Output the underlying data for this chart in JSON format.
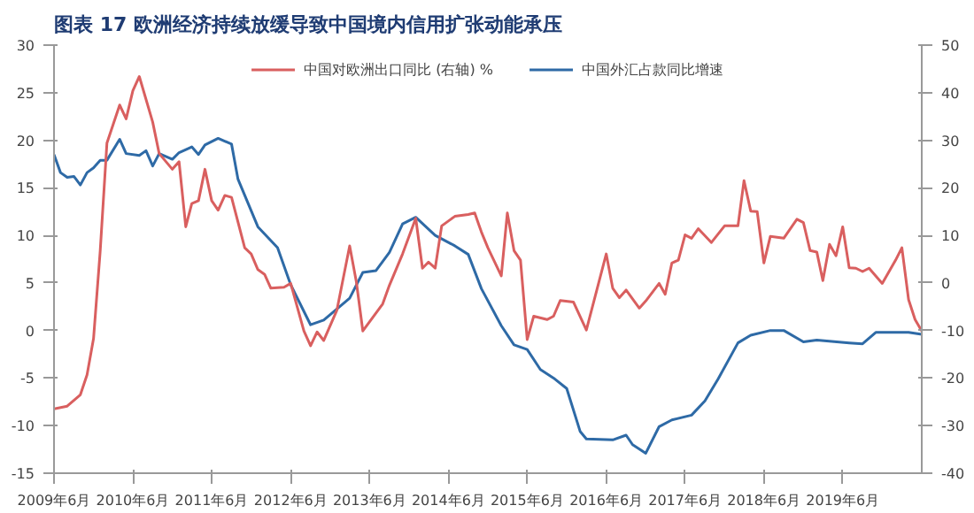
{
  "chart_data": {
    "type": "line",
    "title": "图表 17  欧洲经济持续放缓导致中国境内信用扩张动能承压",
    "xlim": [
      "2009-06",
      "2020-06"
    ],
    "xticks": [
      {
        "value": "2009-06",
        "label": "2009年6月"
      },
      {
        "value": "2010-06",
        "label": "2010年6月"
      },
      {
        "value": "2011-06",
        "label": "2011年6月"
      },
      {
        "value": "2012-06",
        "label": "2012年6月"
      },
      {
        "value": "2013-06",
        "label": "2013年6月"
      },
      {
        "value": "2014-06",
        "label": "2014年6月"
      },
      {
        "value": "2015-06",
        "label": "2015年6月"
      },
      {
        "value": "2016-06",
        "label": "2016年6月"
      },
      {
        "value": "2017-06",
        "label": "2017年6月"
      },
      {
        "value": "2018-06",
        "label": "2018年6月"
      },
      {
        "value": "2019-06",
        "label": "2019年6月"
      }
    ],
    "ylim": [
      -15,
      30
    ],
    "yticks": [
      -15,
      -10,
      -5,
      0,
      5,
      10,
      15,
      20,
      25,
      30
    ],
    "y2lim": [
      -40,
      50
    ],
    "y2ticks": [
      -40,
      -30,
      -20,
      -10,
      0,
      10,
      20,
      30,
      40,
      50
    ],
    "grid": false,
    "legend": "top",
    "series": [
      {
        "name": "中国外汇占款同比增速",
        "color": "#2e6aa6",
        "x": [
          "2009-06",
          "2009-07",
          "2009-08",
          "2009-09",
          "2009-10",
          "2009-11",
          "2009-12",
          "2010-01",
          "2010-02",
          "2010-04",
          "2010-05",
          "2010-07",
          "2010-08",
          "2010-09",
          "2010-10",
          "2010-12",
          "2011-01",
          "2011-03",
          "2011-04",
          "2011-05",
          "2011-07",
          "2011-09",
          "2011-10",
          "2012-01",
          "2012-04",
          "2012-06",
          "2012-09",
          "2012-11",
          "2013-03",
          "2013-05",
          "2013-07",
          "2013-09",
          "2013-11",
          "2014-01",
          "2014-04",
          "2014-07",
          "2014-09",
          "2014-11",
          "2015-02",
          "2015-04",
          "2015-06",
          "2015-08",
          "2015-10",
          "2015-12",
          "2016-02",
          "2016-03",
          "2016-07",
          "2016-09",
          "2016-10",
          "2016-12",
          "2017-02",
          "2017-04",
          "2017-07",
          "2017-09",
          "2017-11",
          "2018-02",
          "2018-04",
          "2018-07",
          "2018-09",
          "2018-12",
          "2019-02",
          "2019-07",
          "2019-09",
          "2019-11",
          "2020-04",
          "2020-06"
        ],
        "values": [
          18.5,
          16.6,
          16.1,
          16.2,
          15.3,
          16.6,
          17.1,
          17.9,
          17.9,
          20.1,
          18.6,
          18.4,
          18.9,
          17.3,
          18.6,
          18,
          18.7,
          19.3,
          18.5,
          19.5,
          20.2,
          19.6,
          15.9,
          10.9,
          8.7,
          4.8,
          0.6,
          1.1,
          3.4,
          6.1,
          6.3,
          8.2,
          11.2,
          11.9,
          10,
          8.9,
          8,
          4.4,
          0.5,
          -1.5,
          -2,
          -4.1,
          -5,
          -6.1,
          -10.6,
          -11.4,
          -11.5,
          -11,
          -12,
          -12.9,
          -10.1,
          -9.4,
          -8.9,
          -7.4,
          -5.1,
          -1.3,
          -0.5,
          0,
          0,
          -1.2,
          -1,
          -1.3,
          -1.4,
          -0.2,
          -0.2,
          -0.4
        ]
      },
      {
        "name": "中国对欧洲出口同比 (右轴) %",
        "color": "#d95f5f",
        "axis": "y2",
        "x": [
          "2009-06",
          "2009-08",
          "2009-10",
          "2009-11",
          "2009-12",
          "2010-01",
          "2010-02",
          "2010-04",
          "2010-05",
          "2010-06",
          "2010-07",
          "2010-09",
          "2010-10",
          "2010-12",
          "2011-01",
          "2011-02",
          "2011-03",
          "2011-04",
          "2011-05",
          "2011-06",
          "2011-07",
          "2011-08",
          "2011-09",
          "2011-11",
          "2011-12",
          "2012-01",
          "2012-02",
          "2012-03",
          "2012-05",
          "2012-06",
          "2012-08",
          "2012-09",
          "2012-10",
          "2012-11",
          "2013-01",
          "2013-03",
          "2013-04",
          "2013-05",
          "2013-08",
          "2013-09",
          "2013-11",
          "2014-01",
          "2014-02",
          "2014-03",
          "2014-04",
          "2014-05",
          "2014-07",
          "2014-09",
          "2014-10",
          "2014-11",
          "2014-12",
          "2015-02",
          "2015-03",
          "2015-04",
          "2015-05",
          "2015-06",
          "2015-07",
          "2015-09",
          "2015-10",
          "2015-11",
          "2016-01",
          "2016-03",
          "2016-06",
          "2016-07",
          "2016-08",
          "2016-09",
          "2016-11",
          "2016-12",
          "2017-02",
          "2017-03",
          "2017-04",
          "2017-05",
          "2017-06",
          "2017-07",
          "2017-08",
          "2017-10",
          "2017-12",
          "2018-02",
          "2018-03",
          "2018-04",
          "2018-05",
          "2018-06",
          "2018-07",
          "2018-09",
          "2018-11",
          "2018-12",
          "2019-01",
          "2019-02",
          "2019-03",
          "2019-04",
          "2019-05",
          "2019-06",
          "2019-07",
          "2019-08",
          "2019-09",
          "2019-10",
          "2019-12",
          "2020-02",
          "2020-03",
          "2020-04",
          "2020-05",
          "2020-06"
        ],
        "values": [
          -26.5,
          -25.9,
          -23.5,
          -19.3,
          -11.7,
          6.8,
          29.4,
          37.4,
          34.5,
          40.4,
          43.4,
          33.8,
          27.2,
          23.9,
          25.5,
          11.8,
          16.7,
          17.3,
          23.9,
          17.3,
          15.3,
          18.4,
          18,
          7.4,
          6.1,
          2.8,
          1.8,
          -1.1,
          -0.9,
          -0.1,
          -10.1,
          -13.2,
          -10.3,
          -12.1,
          -5.7,
          7.8,
          0.2,
          -10.1,
          -4.4,
          -0.5,
          6.1,
          13.6,
          3.1,
          4.4,
          3.1,
          12,
          14,
          14.4,
          14.7,
          10.7,
          7.4,
          1.5,
          14.7,
          6.8,
          4.8,
          -11.9,
          -7,
          -7.7,
          -7,
          -3.7,
          -4,
          -9.9,
          6.1,
          -1.1,
          -3.1,
          -1.5,
          -5.3,
          -3.8,
          -0.1,
          -2.4,
          4.2,
          4.8,
          10.1,
          9.4,
          11.4,
          8.5,
          12,
          12,
          21.5,
          15.1,
          15,
          4.2,
          9.8,
          9.4,
          13.4,
          12.7,
          6.8,
          6.5,
          0.5,
          8.1,
          5.7,
          11.8,
          3.2,
          3.1,
          2.4,
          3.1,
          -0.1,
          4.8,
          7.4,
          -3.5,
          -7.7,
          -10.1
        ]
      }
    ]
  }
}
